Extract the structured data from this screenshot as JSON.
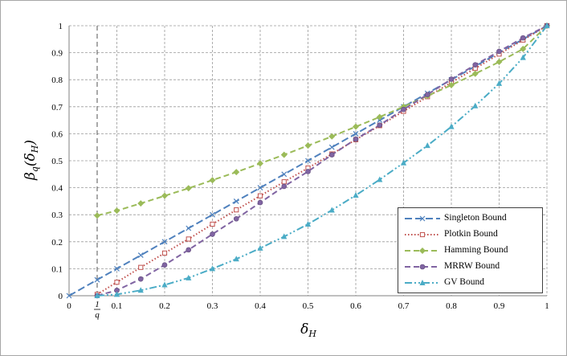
{
  "chart_data": {
    "type": "line",
    "xlabel": "δ",
    "xlabel_sub": "H",
    "ylabel": "β",
    "ylabel_sub": "q",
    "ylabel_paren_open": "(δ",
    "ylabel_paren_sub": "H",
    "ylabel_paren_close": ")",
    "xlim": [
      0,
      1
    ],
    "ylim": [
      0,
      1
    ],
    "x_ticks": [
      0,
      0.1,
      0.2,
      0.3,
      0.4,
      0.5,
      0.6,
      0.7,
      0.8,
      0.9,
      1
    ],
    "y_ticks": [
      0,
      0.1,
      0.2,
      0.3,
      0.4,
      0.5,
      0.6,
      0.7,
      0.8,
      0.9,
      1
    ],
    "x_tick_labels": [
      "0",
      "0.1",
      "0.2",
      "0.3",
      "0.4",
      "0.5",
      "0.6",
      "0.7",
      "0.8",
      "0.9",
      "1"
    ],
    "y_tick_labels": [
      "0",
      "0.1",
      "0.2",
      "0.3",
      "0.4",
      "0.5",
      "0.6",
      "0.7",
      "0.8",
      "0.9",
      "1"
    ],
    "marker_line": {
      "x": 0.0588,
      "label_num": "1",
      "label_den": "q"
    },
    "grid": true,
    "legend_position": "bottom-right",
    "series": [
      {
        "name": "Singleton Bound",
        "color": "#4f81bd",
        "marker": "x",
        "dash": "long-dash",
        "x": [
          0,
          0.0588,
          0.1,
          0.15,
          0.2,
          0.25,
          0.3,
          0.35,
          0.4,
          0.45,
          0.5,
          0.55,
          0.6,
          0.65,
          0.7,
          0.75,
          0.8,
          0.85,
          0.9,
          0.95,
          1
        ],
        "y": [
          0,
          0.059,
          0.1,
          0.15,
          0.2,
          0.25,
          0.3,
          0.35,
          0.4,
          0.45,
          0.5,
          0.55,
          0.6,
          0.65,
          0.7,
          0.75,
          0.8,
          0.85,
          0.9,
          0.95,
          1
        ]
      },
      {
        "name": "Plotkin Bound",
        "color": "#c0504d",
        "marker": "square",
        "dash": "dotted",
        "x": [
          0.0588,
          0.1,
          0.15,
          0.2,
          0.25,
          0.3,
          0.35,
          0.4,
          0.45,
          0.5,
          0.55,
          0.6,
          0.65,
          0.7,
          0.75,
          0.8,
          0.85,
          0.9,
          0.95,
          1
        ],
        "y": [
          0.005,
          0.05,
          0.105,
          0.158,
          0.21,
          0.265,
          0.318,
          0.37,
          0.422,
          0.473,
          0.525,
          0.578,
          0.63,
          0.683,
          0.737,
          0.79,
          0.842,
          0.895,
          0.947,
          1
        ]
      },
      {
        "name": "Hamming Bound",
        "color": "#9bbb59",
        "marker": "diamond",
        "dash": "dash",
        "x": [
          0.0588,
          0.1,
          0.15,
          0.2,
          0.25,
          0.3,
          0.35,
          0.4,
          0.45,
          0.5,
          0.55,
          0.6,
          0.65,
          0.7,
          0.75,
          0.8,
          0.85,
          0.9,
          0.95,
          1
        ],
        "y": [
          0.297,
          0.315,
          0.342,
          0.37,
          0.398,
          0.428,
          0.458,
          0.49,
          0.522,
          0.556,
          0.59,
          0.626,
          0.662,
          0.7,
          0.74,
          0.78,
          0.822,
          0.866,
          0.914,
          1
        ]
      },
      {
        "name": "MRRW Bound",
        "color": "#8064a2",
        "marker": "circle",
        "dash": "dash",
        "x": [
          0.0588,
          0.1,
          0.15,
          0.2,
          0.25,
          0.3,
          0.35,
          0.4,
          0.45,
          0.5,
          0.55,
          0.6,
          0.65,
          0.7,
          0.75,
          0.8,
          0.85,
          0.9,
          0.95,
          1
        ],
        "y": [
          0,
          0.02,
          0.062,
          0.114,
          0.17,
          0.228,
          0.285,
          0.345,
          0.405,
          0.46,
          0.522,
          0.58,
          0.632,
          0.69,
          0.745,
          0.802,
          0.855,
          0.905,
          0.955,
          1
        ]
      },
      {
        "name": "GV Bound",
        "color": "#4bacc6",
        "marker": "triangle",
        "dash": "dash-dot-dot",
        "x": [
          0.0588,
          0.1,
          0.15,
          0.2,
          0.25,
          0.3,
          0.35,
          0.4,
          0.45,
          0.5,
          0.55,
          0.6,
          0.65,
          0.7,
          0.75,
          0.8,
          0.85,
          0.9,
          0.95,
          1
        ],
        "y": [
          0,
          0.005,
          0.02,
          0.04,
          0.066,
          0.1,
          0.136,
          0.176,
          0.219,
          0.265,
          0.317,
          0.372,
          0.43,
          0.492,
          0.556,
          0.626,
          0.703,
          0.786,
          0.882,
          1
        ]
      }
    ]
  }
}
